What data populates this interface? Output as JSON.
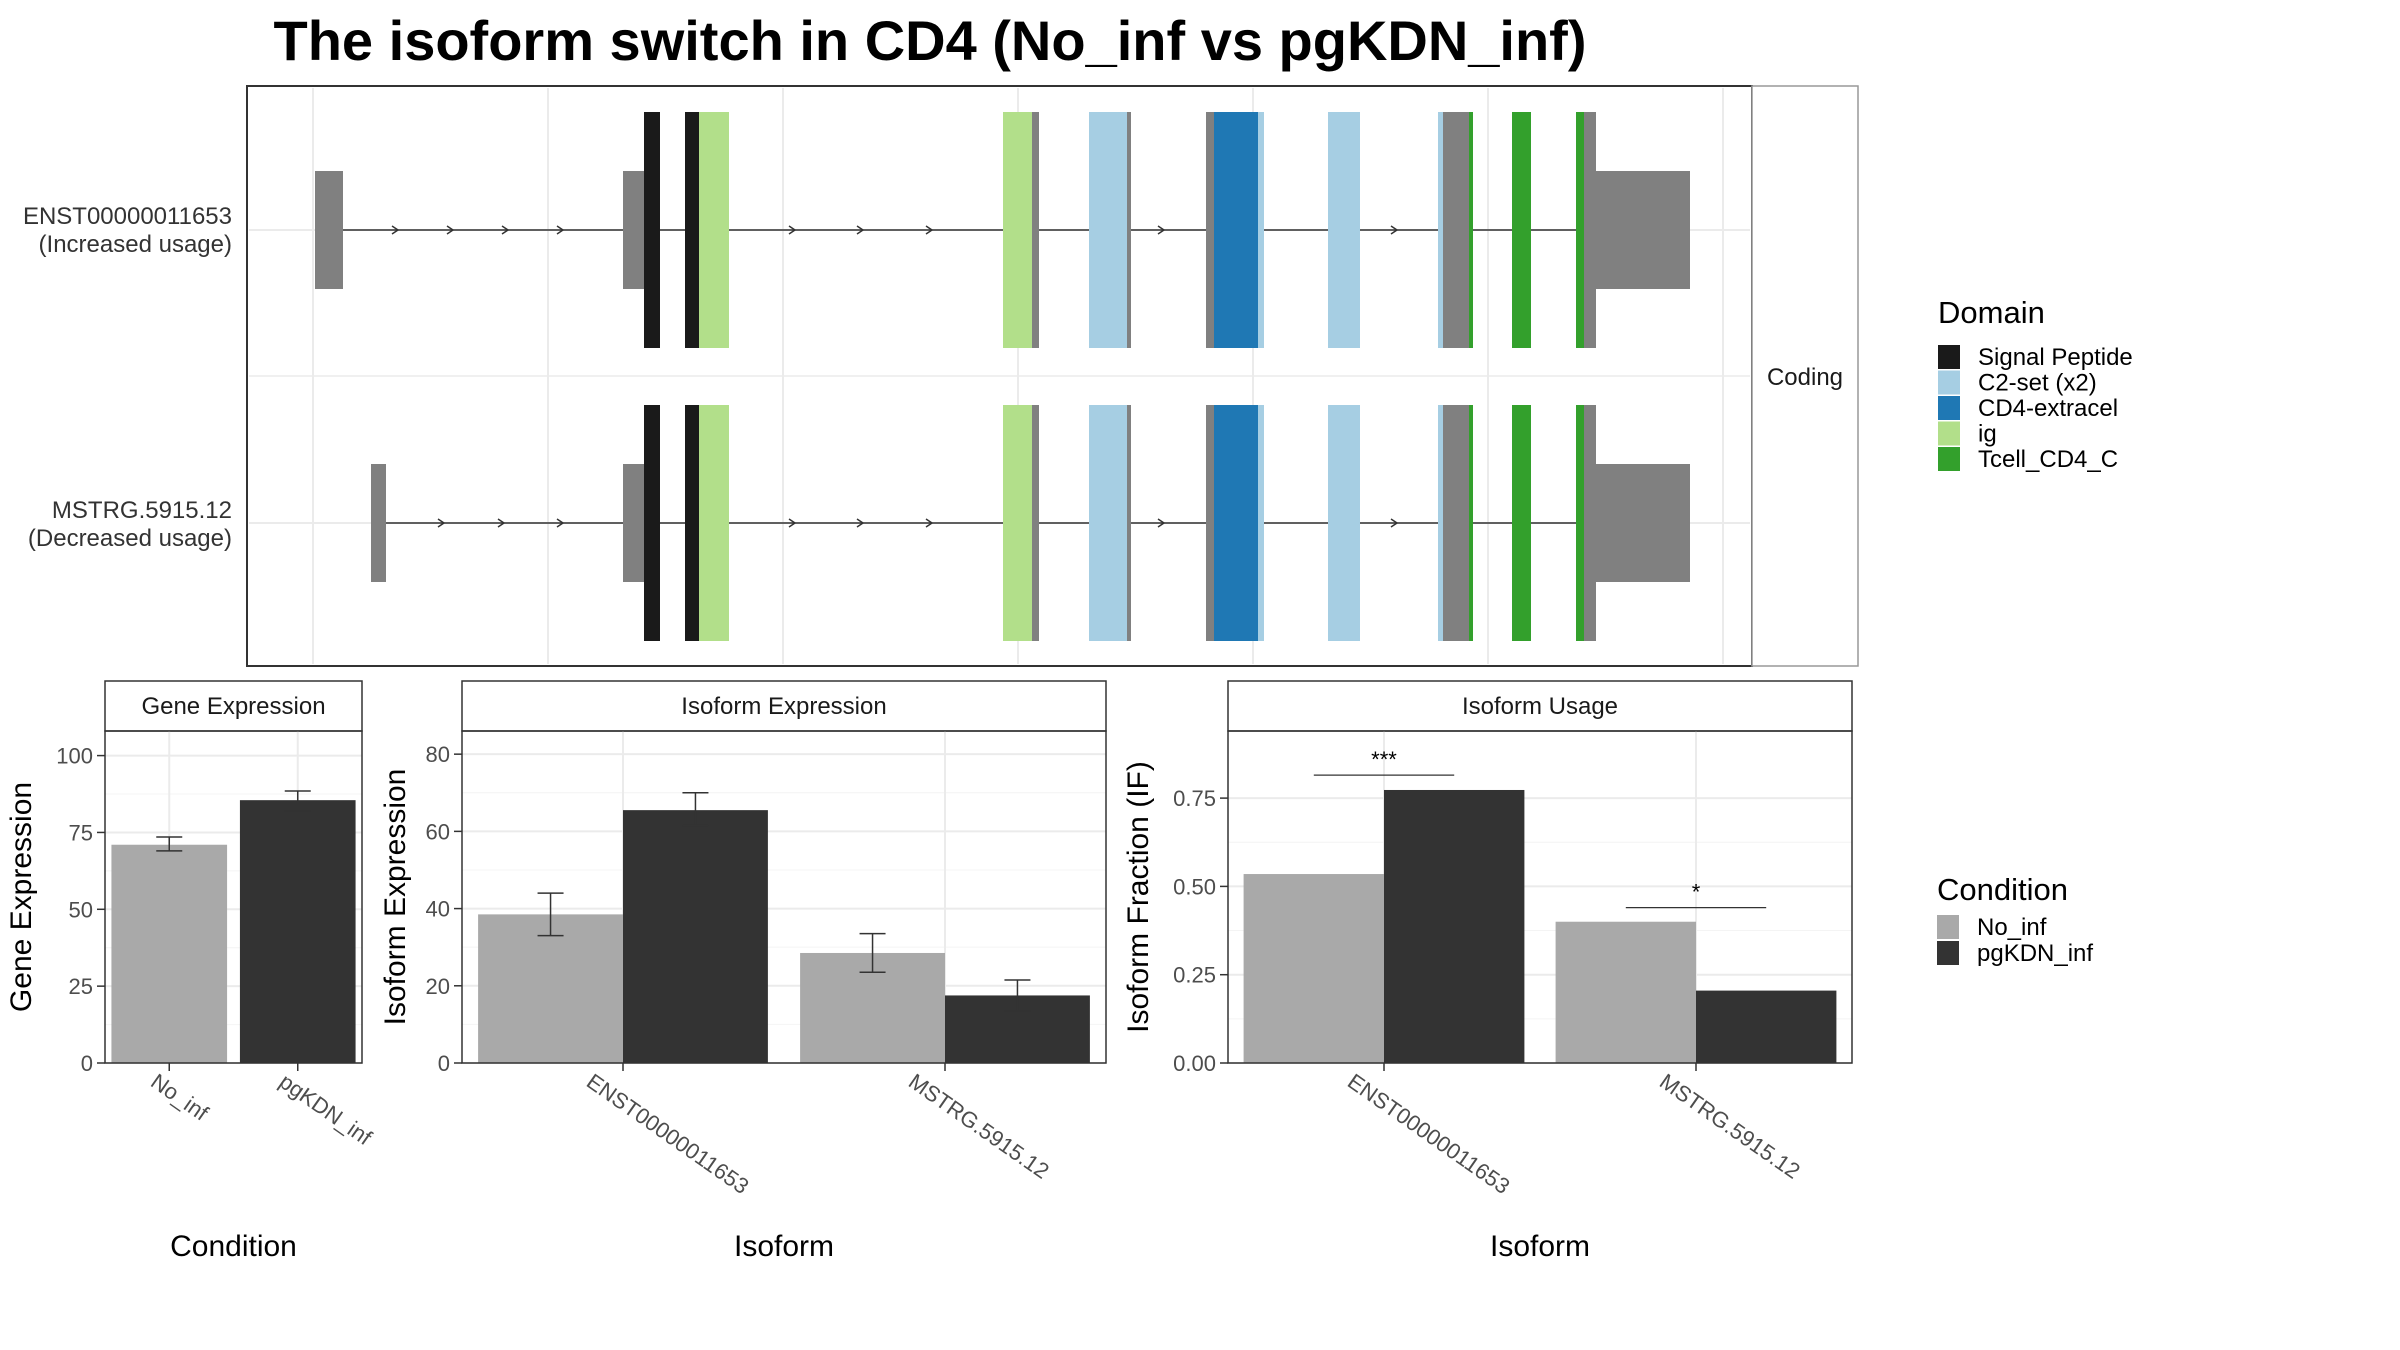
{
  "title": "The isoform switch in CD4 (No_inf vs pgKDN_inf)",
  "colors": {
    "No_inf": "#a9a9a9",
    "pgKDN_inf": "#333333",
    "utr": "#808080",
    "Signal Peptide": "#1a1a1a",
    "C2-set (x2)": "#a6cee3",
    "CD4-extracel": "#1f78b4",
    "ig": "#b2df8a",
    "Tcell_CD4_C": "#33a02c"
  },
  "chart_data": [
    {
      "type": "gene_structure",
      "strip_label": "Coding",
      "isoforms": [
        {
          "name": "ENST00000011653",
          "label": "(Increased usage)"
        },
        {
          "name": "MSTRG.5915.12",
          "label": "(Decreased usage)"
        }
      ],
      "legend": {
        "title": "Domain",
        "entries": [
          "Signal Peptide",
          "C2-set (x2)",
          "CD4-extracel",
          "ig",
          "Tcell_CD4_C"
        ]
      }
    },
    {
      "type": "bar",
      "strip": "Gene Expression",
      "xlabel": "Condition",
      "ylabel": "Gene Expression",
      "categories": [
        "No_inf",
        "pgKDN_inf"
      ],
      "ylim": [
        0,
        108
      ],
      "yticks": [
        0,
        25,
        50,
        75,
        100
      ],
      "values": [
        71,
        85.5
      ],
      "errors": [
        [
          69,
          73.5
        ],
        [
          82,
          88.5
        ]
      ]
    },
    {
      "type": "bar",
      "strip": "Isoform Expression",
      "xlabel": "Isoform",
      "ylabel": "Isoform Expression",
      "categories": [
        "ENST00000011653",
        "MSTRG.5915.12"
      ],
      "ylim": [
        0,
        86
      ],
      "yticks": [
        0,
        20,
        40,
        60,
        80
      ],
      "series": [
        {
          "name": "No_inf",
          "values": [
            38.5,
            28.5
          ],
          "errors": [
            [
              33,
              44
            ],
            [
              23.5,
              33.5
            ]
          ]
        },
        {
          "name": "pgKDN_inf",
          "values": [
            65.5,
            17.5
          ],
          "errors": [
            [
              61.5,
              70
            ],
            [
              13.5,
              21.5
            ]
          ]
        }
      ]
    },
    {
      "type": "bar",
      "strip": "Isoform Usage",
      "xlabel": "Isoform",
      "ylabel": "Isoform Fraction (IF)",
      "categories": [
        "ENST00000011653",
        "MSTRG.5915.12"
      ],
      "ylim": [
        0,
        0.94
      ],
      "yticks": [
        "0.00",
        "0.25",
        "0.50",
        "0.75"
      ],
      "series": [
        {
          "name": "No_inf",
          "values": [
            0.535,
            0.4
          ]
        },
        {
          "name": "pgKDN_inf",
          "values": [
            0.773,
            0.205
          ]
        }
      ],
      "significance": [
        "***",
        "*"
      ],
      "sig_levels": [
        0.815,
        0.44
      ]
    }
  ],
  "condition_legend": {
    "title": "Condition",
    "entries": [
      "No_inf",
      "pgKDN_inf"
    ]
  }
}
